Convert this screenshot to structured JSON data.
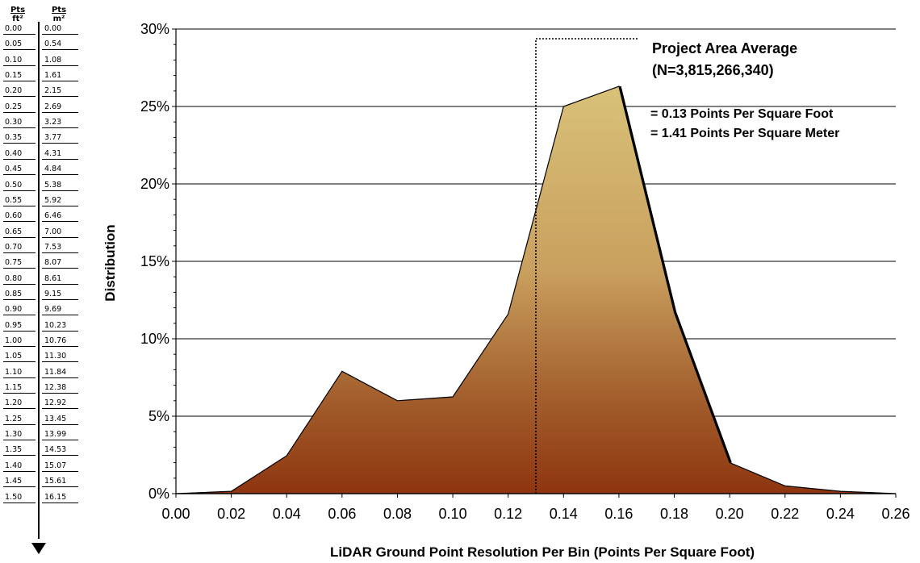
{
  "conversion_table": {
    "col1_header_top": "Pts",
    "col1_header_bottom": "ft²",
    "col2_header_top": "Pts",
    "col2_header_bottom": "m²",
    "rows": [
      [
        "0.00",
        "0.00"
      ],
      [
        "0.05",
        "0.54"
      ],
      [
        "0.10",
        "1.08"
      ],
      [
        "0.15",
        "1.61"
      ],
      [
        "0.20",
        "2.15"
      ],
      [
        "0.25",
        "2.69"
      ],
      [
        "0.30",
        "3.23"
      ],
      [
        "0.35",
        "3.77"
      ],
      [
        "0.40",
        "4.31"
      ],
      [
        "0.45",
        "4.84"
      ],
      [
        "0.50",
        "5.38"
      ],
      [
        "0.55",
        "5.92"
      ],
      [
        "0.60",
        "6.46"
      ],
      [
        "0.65",
        "7.00"
      ],
      [
        "0.70",
        "7.53"
      ],
      [
        "0.75",
        "8.07"
      ],
      [
        "0.80",
        "8.61"
      ],
      [
        "0.85",
        "9.15"
      ],
      [
        "0.90",
        "9.69"
      ],
      [
        "0.95",
        "10.23"
      ],
      [
        "1.00",
        "10.76"
      ],
      [
        "1.05",
        "11.30"
      ],
      [
        "1.10",
        "11.84"
      ],
      [
        "1.15",
        "12.38"
      ],
      [
        "1.20",
        "12.92"
      ],
      [
        "1.25",
        "13.45"
      ],
      [
        "1.30",
        "13.99"
      ],
      [
        "1.35",
        "14.53"
      ],
      [
        "1.40",
        "15.07"
      ],
      [
        "1.45",
        "15.61"
      ],
      [
        "1.50",
        "16.15"
      ]
    ]
  },
  "chart_data": {
    "type": "area",
    "title": "",
    "xlabel": "LiDAR Ground Point Resolution Per Bin (Points Per Square Foot)",
    "ylabel": "Distribution",
    "xlim": [
      0,
      0.26
    ],
    "ylim": [
      0,
      30
    ],
    "x_ticks": [
      "0.00",
      "0.02",
      "0.04",
      "0.06",
      "0.08",
      "0.10",
      "0.12",
      "0.14",
      "0.16",
      "0.18",
      "0.20",
      "0.22",
      "0.24",
      "0.26"
    ],
    "y_ticks": [
      "0%",
      "5%",
      "10%",
      "15%",
      "20%",
      "25%",
      "30%"
    ],
    "y_tick_values": [
      0,
      5,
      10,
      15,
      20,
      25,
      30
    ],
    "grid": "horizontal",
    "x": [
      0.0,
      0.02,
      0.04,
      0.06,
      0.08,
      0.1,
      0.12,
      0.14,
      0.16,
      0.18,
      0.2,
      0.22,
      0.24,
      0.26
    ],
    "values": [
      0.0,
      0.15,
      2.45,
      7.9,
      6.0,
      6.25,
      11.6,
      25.0,
      26.3,
      11.7,
      2.0,
      0.5,
      0.15,
      0.0
    ],
    "fill_colors": {
      "top": "#d8c178",
      "bottom": "#8e3510"
    },
    "average_marker": {
      "x": 0.13,
      "label": "Project Area Average",
      "count": "(N=3,815,266,340)",
      "line1": "= 0.13 Points Per Square Foot",
      "line2": "= 1.41 Points Per Square Meter"
    }
  }
}
